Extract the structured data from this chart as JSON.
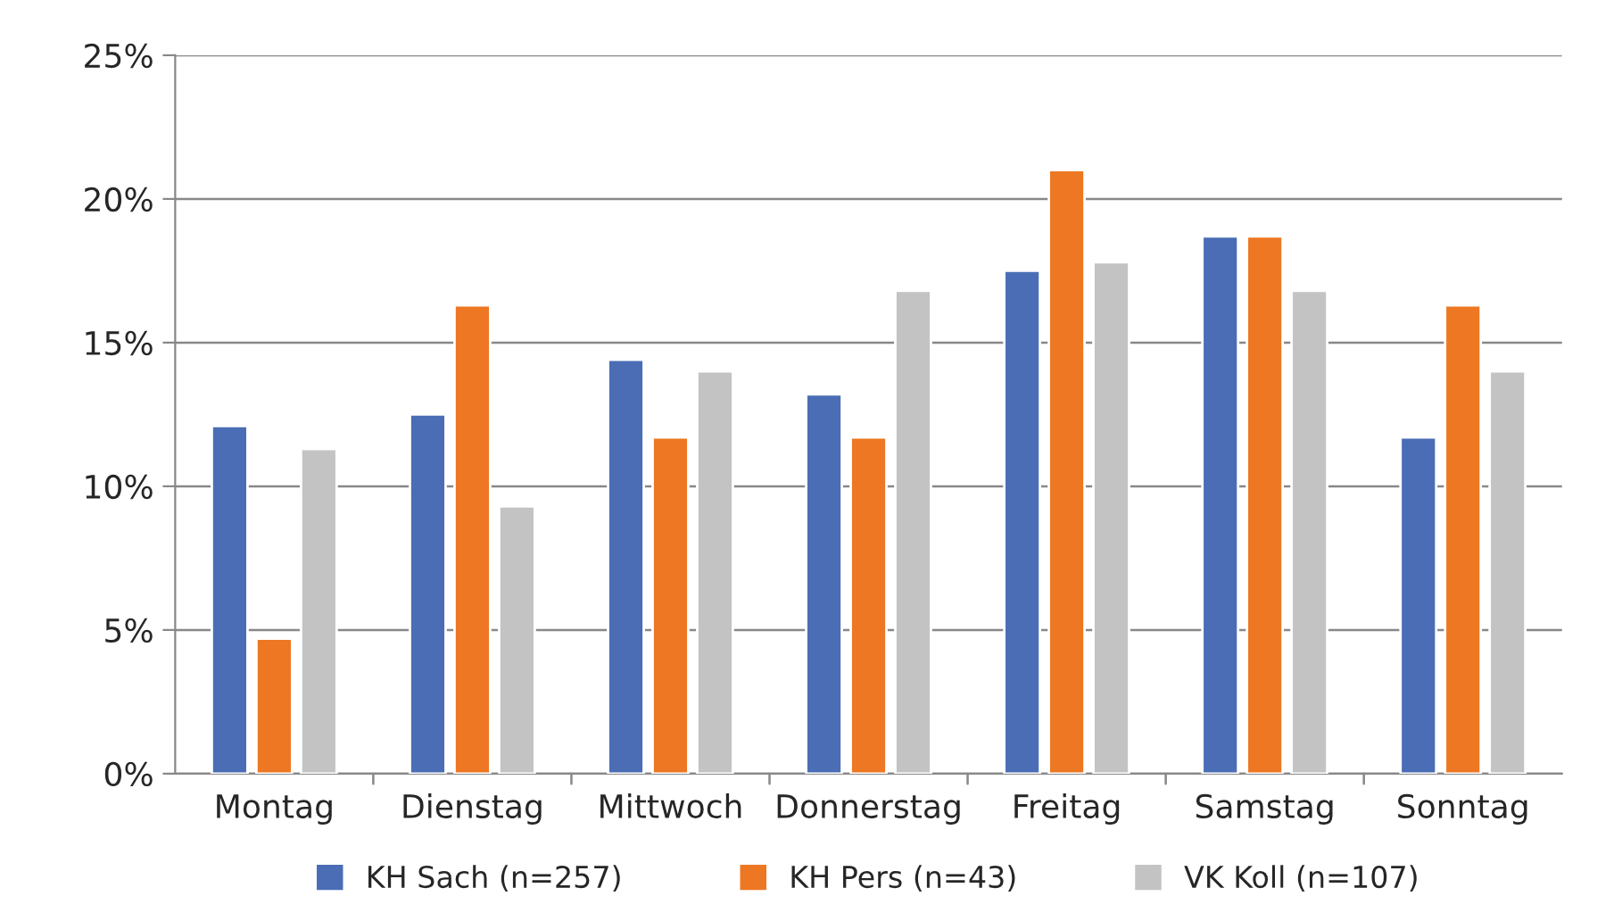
{
  "chart_data": {
    "type": "bar",
    "categories": [
      "Montag",
      "Dienstag",
      "Mittwoch",
      "Donnerstag",
      "Freitag",
      "Samstag",
      "Sonntag"
    ],
    "series": [
      {
        "name": "KH Sach (n=257)",
        "color": "#4a6db5",
        "values": [
          12.1,
          12.5,
          14.4,
          13.2,
          17.5,
          18.7,
          11.7
        ]
      },
      {
        "name": "KH Pers (n=43)",
        "color": "#ed7722",
        "values": [
          4.7,
          16.3,
          11.7,
          11.7,
          21.0,
          18.7,
          16.3
        ]
      },
      {
        "name": "VK Koll (n=107)",
        "color": "#c3c3c3",
        "values": [
          11.3,
          9.3,
          14.0,
          16.8,
          17.8,
          16.8,
          14.0
        ]
      }
    ],
    "ylim": [
      0,
      25
    ],
    "yticks": [
      {
        "value": 0,
        "label": "0%"
      },
      {
        "value": 5,
        "label": "5%"
      },
      {
        "value": 10,
        "label": "10%"
      },
      {
        "value": 15,
        "label": "15%"
      },
      {
        "value": 20,
        "label": "20%"
      },
      {
        "value": 25,
        "label": "25%"
      }
    ],
    "grid": "y",
    "legend": "bottom"
  }
}
